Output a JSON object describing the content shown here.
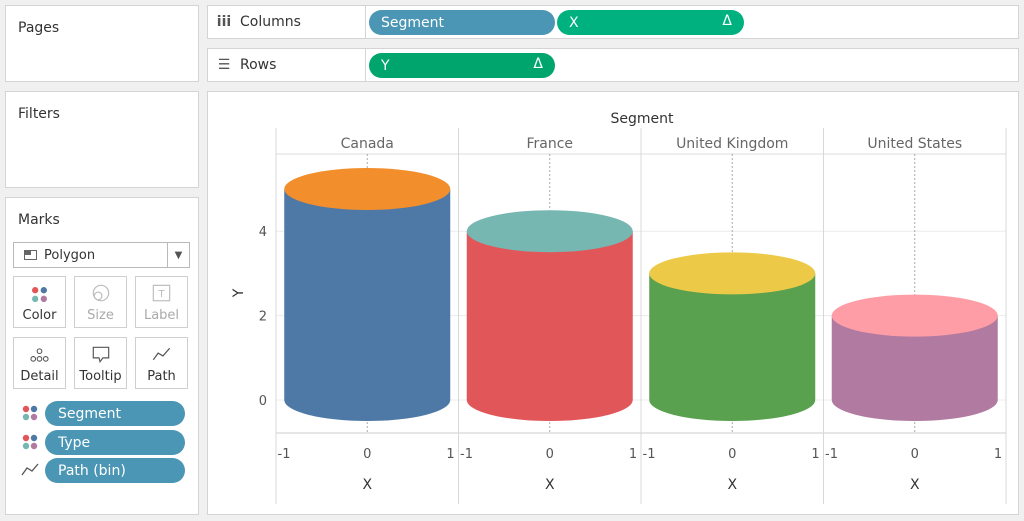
{
  "left_panel": {
    "pages_title": "Pages",
    "filters_title": "Filters",
    "marks_title": "Marks",
    "mark_type": "Polygon",
    "buttons": {
      "color": "Color",
      "size": "Size",
      "label": "Label",
      "detail": "Detail",
      "tooltip": "Tooltip",
      "path": "Path"
    },
    "mark_pills": [
      {
        "label": "Segment",
        "icon": "color-icon"
      },
      {
        "label": "Type",
        "icon": "color-icon"
      },
      {
        "label": "Path (bin)",
        "icon": "path-icon"
      }
    ]
  },
  "shelves": {
    "columns_label": "Columns",
    "rows_label": "Rows",
    "columns_pills": [
      {
        "label": "Segment",
        "delta": ""
      },
      {
        "label": "X",
        "delta": "Δ"
      }
    ],
    "rows_pills": [
      {
        "label": "Y",
        "delta": "Δ"
      }
    ]
  },
  "chart_data": {
    "type": "cylinder",
    "header_title": "Segment",
    "ylabel": "Y",
    "xlabel": "X",
    "x_ticks": [
      "-1",
      "0",
      "1"
    ],
    "y_ticks": [
      "0",
      "2",
      "4"
    ],
    "ylim": [
      -0.8,
      5.5
    ],
    "panels": [
      {
        "name": "Canada",
        "value": 5,
        "side_color": "#4e79a7",
        "top_color": "#f28e2b"
      },
      {
        "name": "France",
        "value": 4,
        "side_color": "#e15759",
        "top_color": "#76b7b2"
      },
      {
        "name": "United Kingdom",
        "value": 3,
        "side_color": "#59a14f",
        "top_color": "#edc948"
      },
      {
        "name": "United States",
        "value": 2,
        "side_color": "#b07aa1",
        "top_color": "#ff9da7"
      }
    ]
  }
}
